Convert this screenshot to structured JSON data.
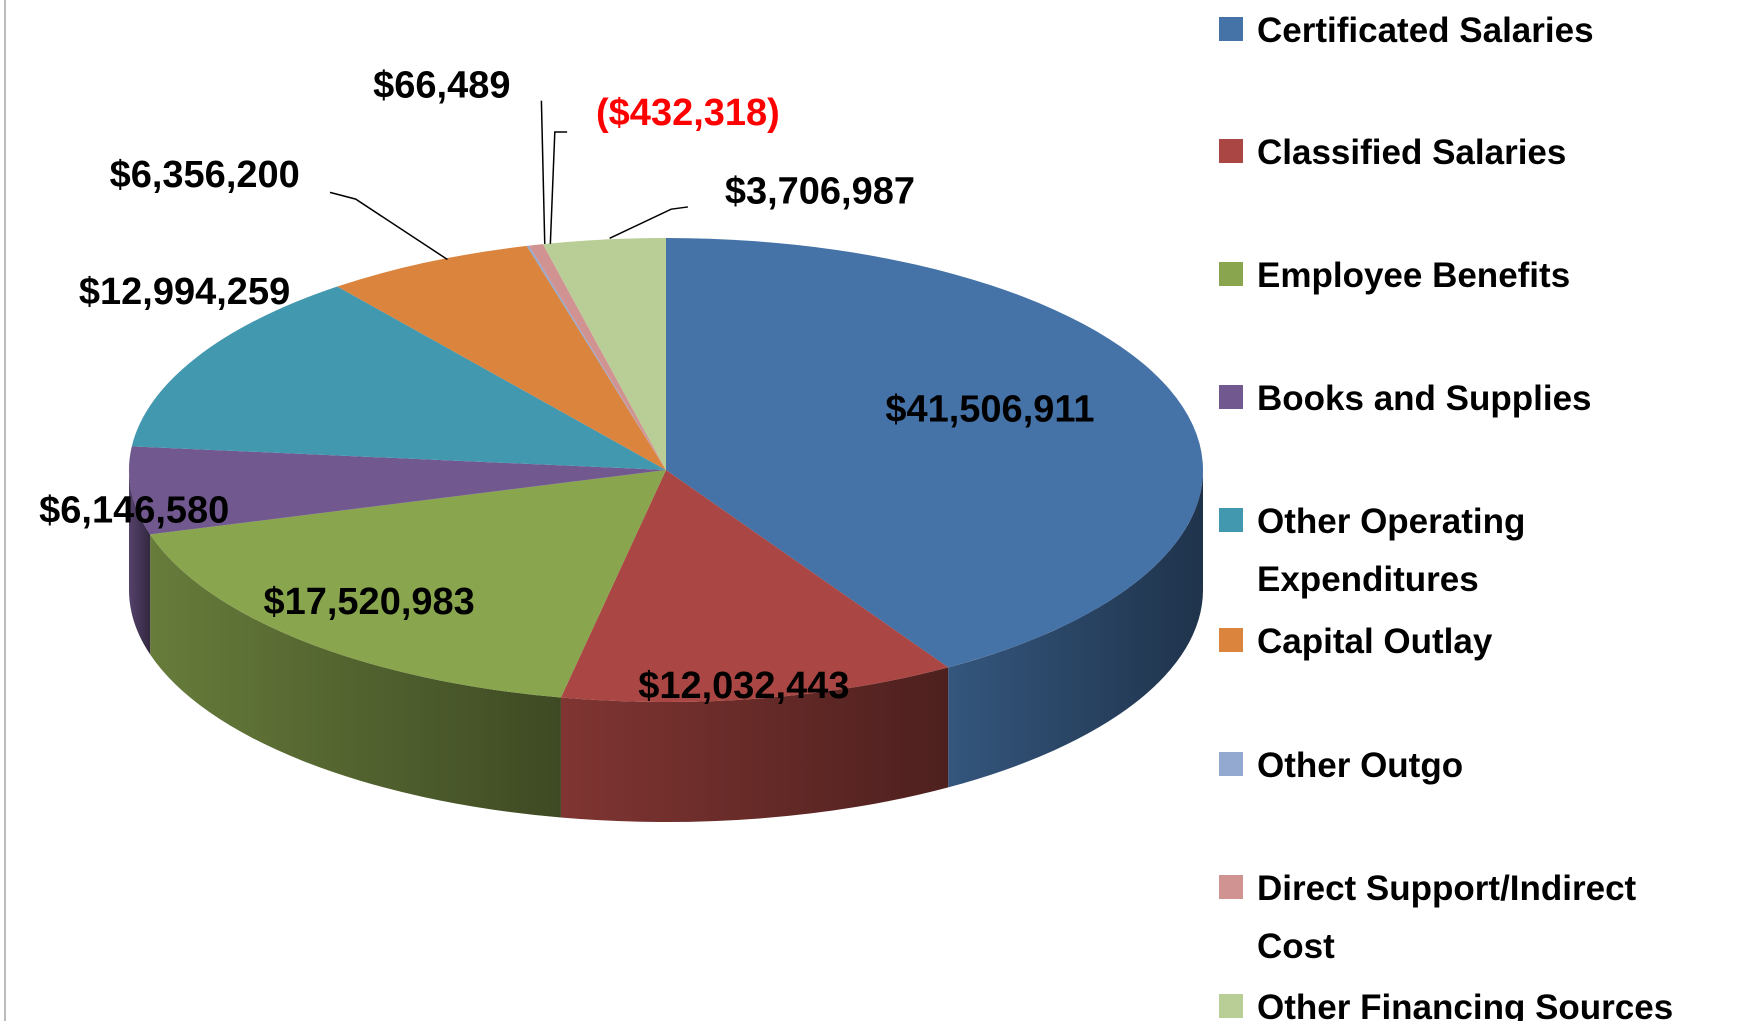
{
  "chart_data": {
    "type": "pie",
    "categories": [
      "Certificated Salaries",
      "Classified Salaries",
      "Employee Benefits",
      "Books and Supplies",
      "Other Operating Expenditures",
      "Capital Outlay",
      "Other Outgo",
      "Direct Support/Indirect Cost",
      "Other Financing Sources"
    ],
    "values": [
      41506911,
      12032443,
      17520983,
      6146580,
      12994259,
      6356200,
      66489,
      -432318,
      3706987
    ],
    "value_labels": [
      "$41,506,911",
      "$12,032,443",
      "$17,520,983",
      "$6,146,580",
      "$12,994,259",
      "$6,356,200",
      "$66,489",
      "($432,318)",
      "$3,706,987"
    ],
    "colors": [
      "#4572a7",
      "#aa4643",
      "#89a54e",
      "#71588f",
      "#4198af",
      "#db843d",
      "#93a9cf",
      "#d19392",
      "#b9cd96"
    ],
    "legend": "right"
  }
}
